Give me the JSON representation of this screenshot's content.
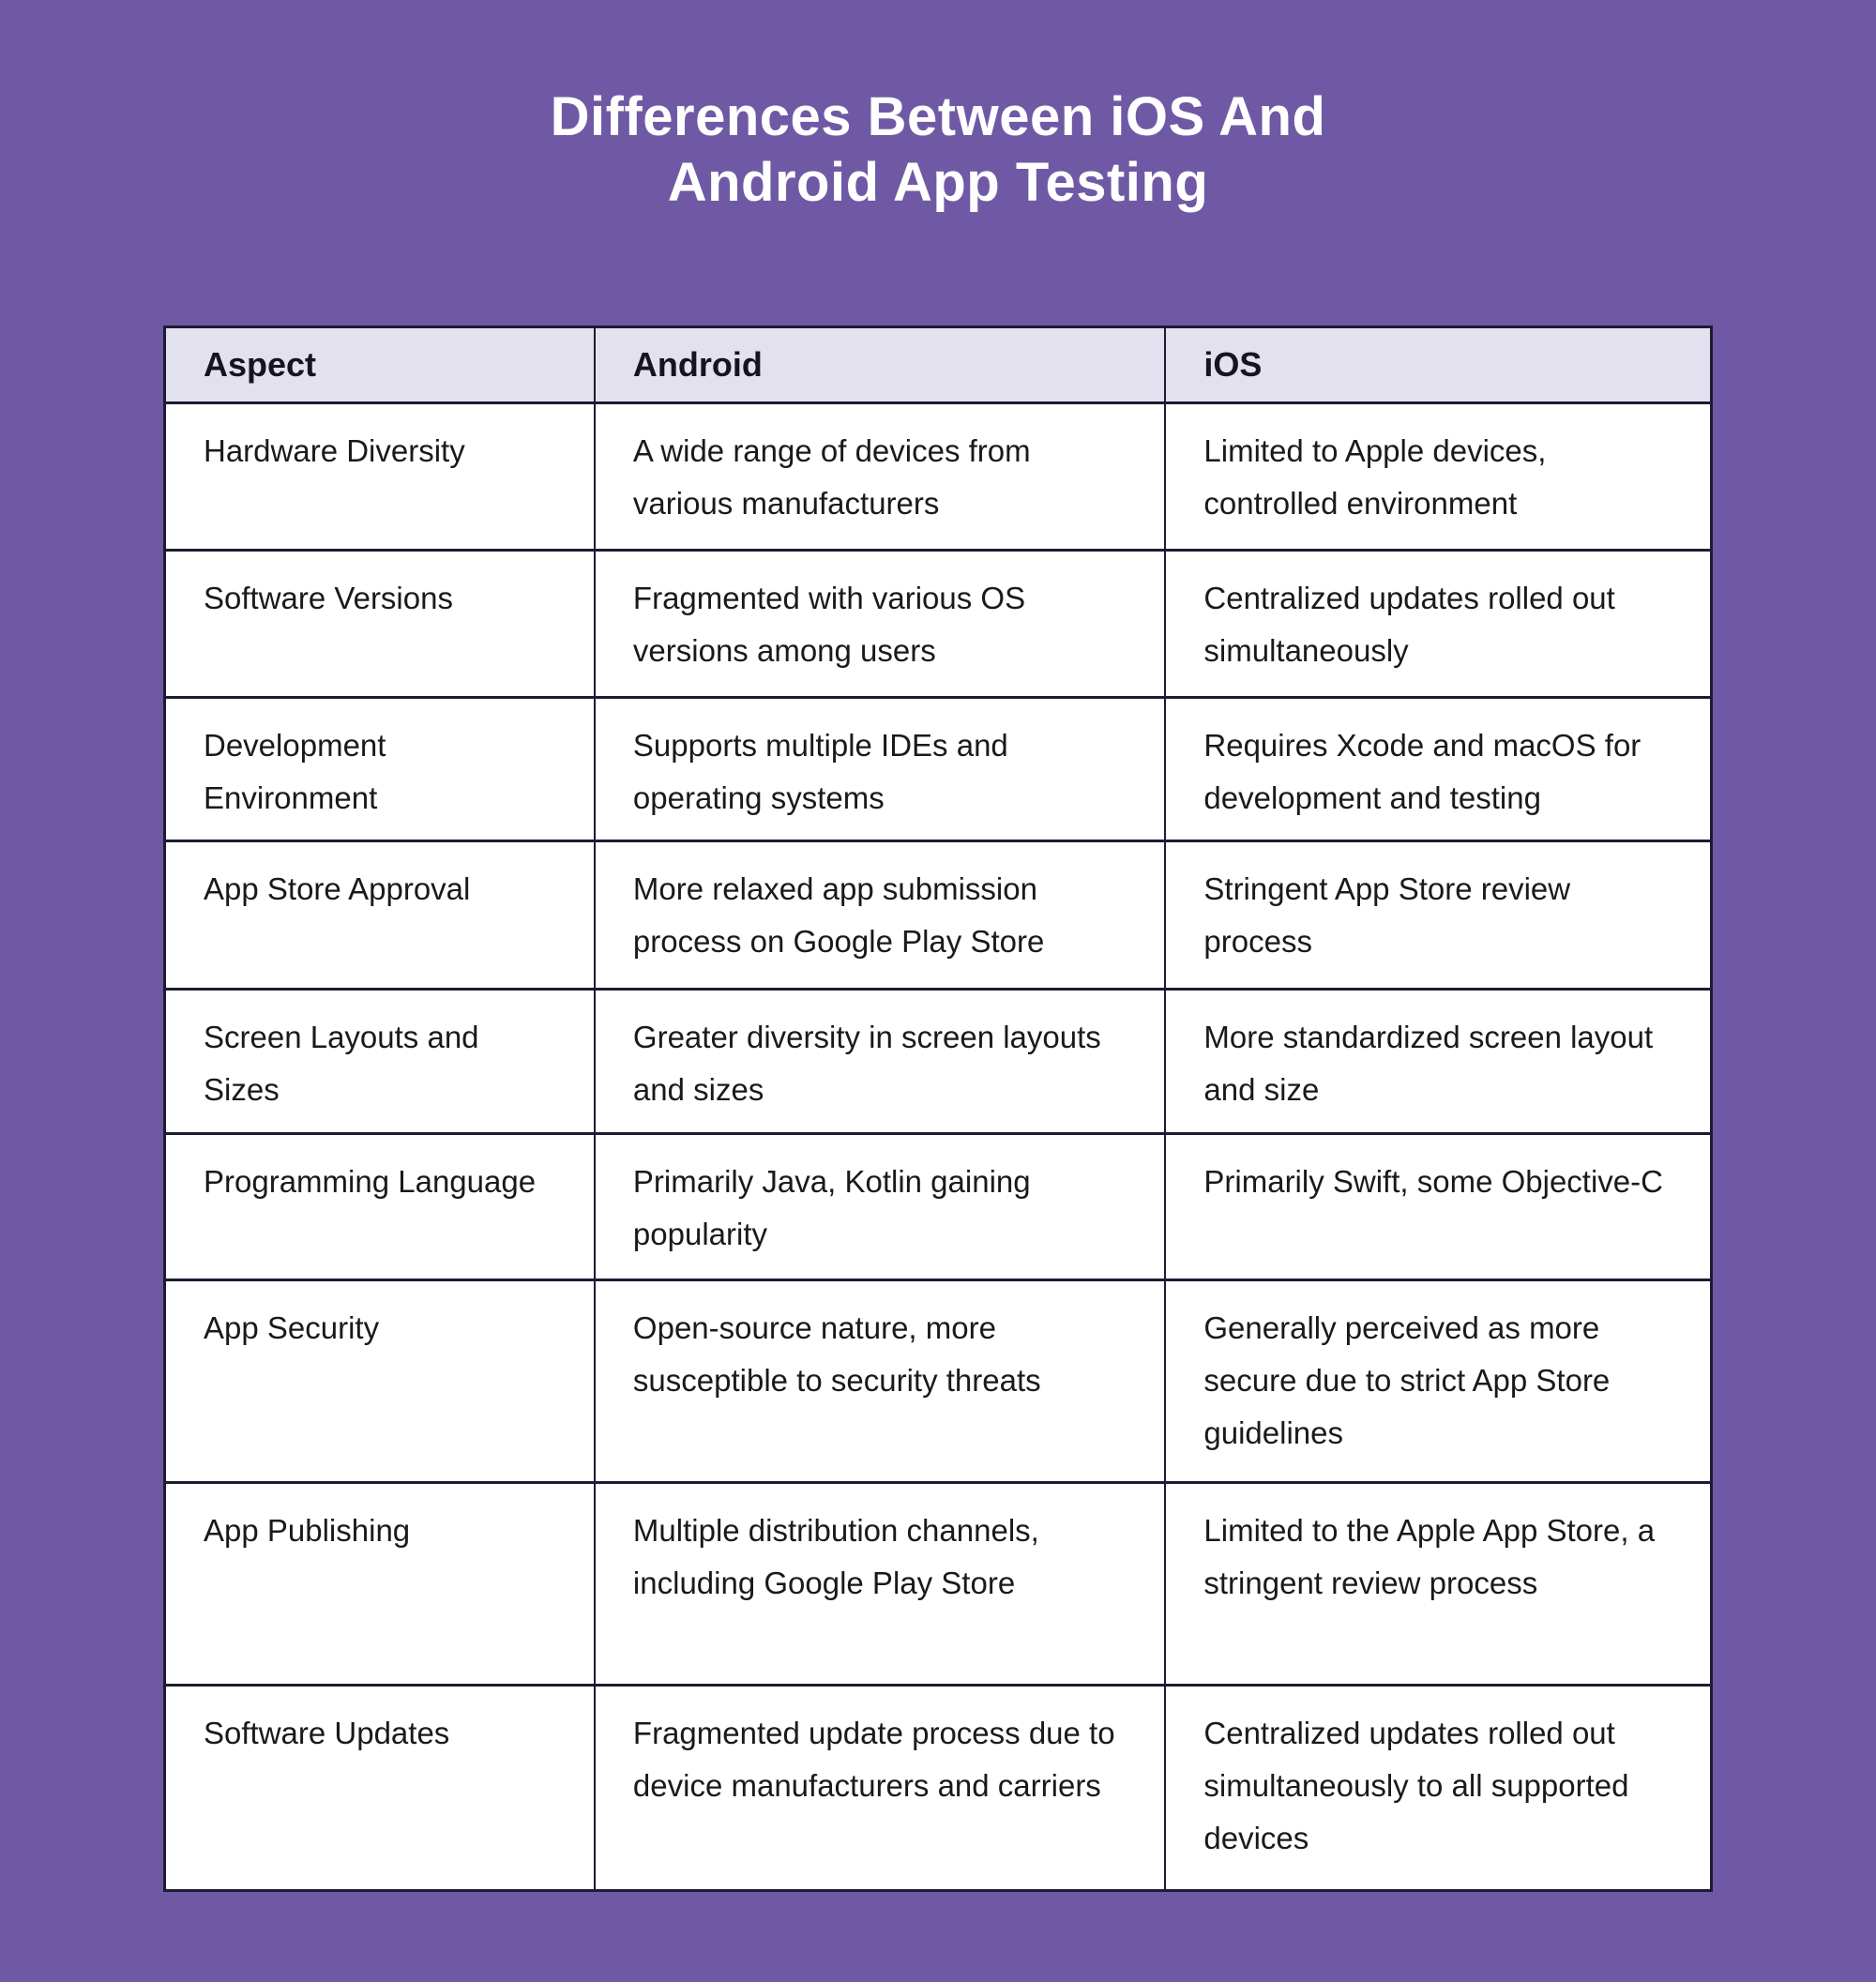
{
  "page": {
    "background_color": "#6F59A5",
    "title": {
      "line1": "Differences Between iOS And",
      "line2": "Android App Testing",
      "color": "#FFFFFF"
    }
  },
  "table": {
    "colors": {
      "header_bg": "#E4E1EE",
      "body_bg": "#FFFFFF",
      "border": "#1E1B33",
      "header_text": "#16141F",
      "body_text": "#1A1A1A"
    },
    "columns": [
      "Aspect",
      "Android",
      "iOS"
    ],
    "rows": [
      {
        "aspect": "Hardware Diversity",
        "android": "A wide range of devices from various manufacturers",
        "ios": "Limited to Apple devices, controlled environment"
      },
      {
        "aspect": "Software Versions",
        "android": "Fragmented with various OS versions among users",
        "ios": "Centralized updates rolled out simultaneously"
      },
      {
        "aspect": "Development Environment",
        "android": "Supports multiple IDEs and operating systems",
        "ios": "Requires Xcode and macOS for development and testing"
      },
      {
        "aspect": "App Store Approval",
        "android": "More relaxed app submission process on Google Play Store",
        "ios": "Stringent App Store review process"
      },
      {
        "aspect": "Screen Layouts and Sizes",
        "android": "Greater diversity in screen layouts and sizes",
        "ios": "More standardized screen layout and size"
      },
      {
        "aspect": "Programming Language",
        "android": "Primarily Java, Kotlin gaining popularity",
        "ios": "Primarily Swift, some Objective-C"
      },
      {
        "aspect": "App Security",
        "android": "Open-source nature, more susceptible to security threats",
        "ios": "Generally perceived as more secure due to strict App Store guidelines"
      },
      {
        "aspect": "App Publishing",
        "android": "Multiple distribution channels, including Google Play Store",
        "ios": "Limited to the Apple App Store, a stringent review process"
      },
      {
        "aspect": "Software Updates",
        "android": "Fragmented update process due to device manufacturers and carriers",
        "ios": "Centralized updates rolled out simultaneously to all supported devices"
      }
    ]
  }
}
